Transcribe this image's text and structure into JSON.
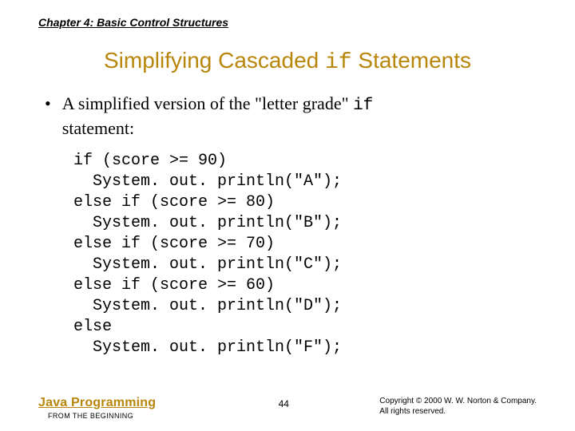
{
  "chapter_header": "Chapter 4: Basic Control Structures",
  "title_pre": "Simplifying Cascaded ",
  "title_code": "if",
  "title_post": " Statements",
  "bullet_pre": "A simplified version of the \"letter grade\" ",
  "bullet_code": "if",
  "bullet_post_line2": "statement:",
  "code": "if (score >= 90)\n  System. out. println(\"A\");\nelse if (score >= 80)\n  System. out. println(\"B\");\nelse if (score >= 70)\n  System. out. println(\"C\");\nelse if (score >= 60)\n  System. out. println(\"D\");\nelse\n  System. out. println(\"F\");",
  "footer": {
    "book_title": "Java Programming",
    "book_sub": "FROM THE BEGINNING",
    "page_no": "44",
    "copyright_l1": "Copyright © 2000 W. W. Norton & Company.",
    "copyright_l2": "All rights reserved."
  },
  "colors": {
    "accent": "#b8860b",
    "text": "#000000",
    "bg": "#ffffff"
  }
}
